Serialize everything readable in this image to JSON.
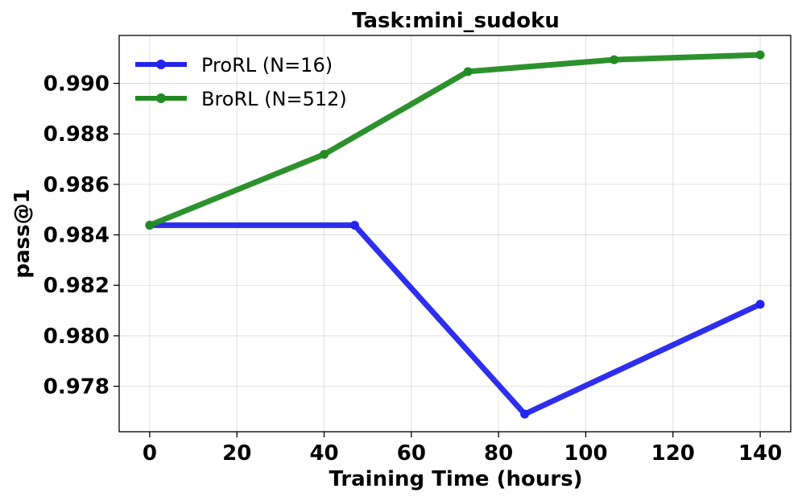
{
  "chart_data": {
    "type": "line",
    "title": "Task:mini_sudoku",
    "xlabel": "Training Time (hours)",
    "ylabel": "pass@1",
    "xlim": [
      -7,
      147
    ],
    "ylim": [
      0.9762,
      0.9919
    ],
    "xticks": [
      0,
      20,
      40,
      60,
      80,
      100,
      120,
      140
    ],
    "xtick_labels": [
      "0",
      "20",
      "40",
      "60",
      "80",
      "100",
      "120",
      "140"
    ],
    "yticks": [
      0.978,
      0.98,
      0.982,
      0.984,
      0.986,
      0.988,
      0.99
    ],
    "ytick_labels": [
      "0.978",
      "0.980",
      "0.982",
      "0.984",
      "0.986",
      "0.988",
      "0.990"
    ],
    "grid": true,
    "legend_position": "top-left",
    "series": [
      {
        "name": "ProRL (N=16)",
        "color": "#2323ee",
        "x": [
          0,
          47,
          86,
          140
        ],
        "y": [
          0.98438,
          0.98438,
          0.9769,
          0.98125
        ]
      },
      {
        "name": "BroRL (N=512)",
        "color": "#228b22",
        "x": [
          0,
          40,
          73,
          106.5,
          140
        ],
        "y": [
          0.98438,
          0.98719,
          0.99047,
          0.99094,
          0.99113
        ]
      }
    ]
  }
}
